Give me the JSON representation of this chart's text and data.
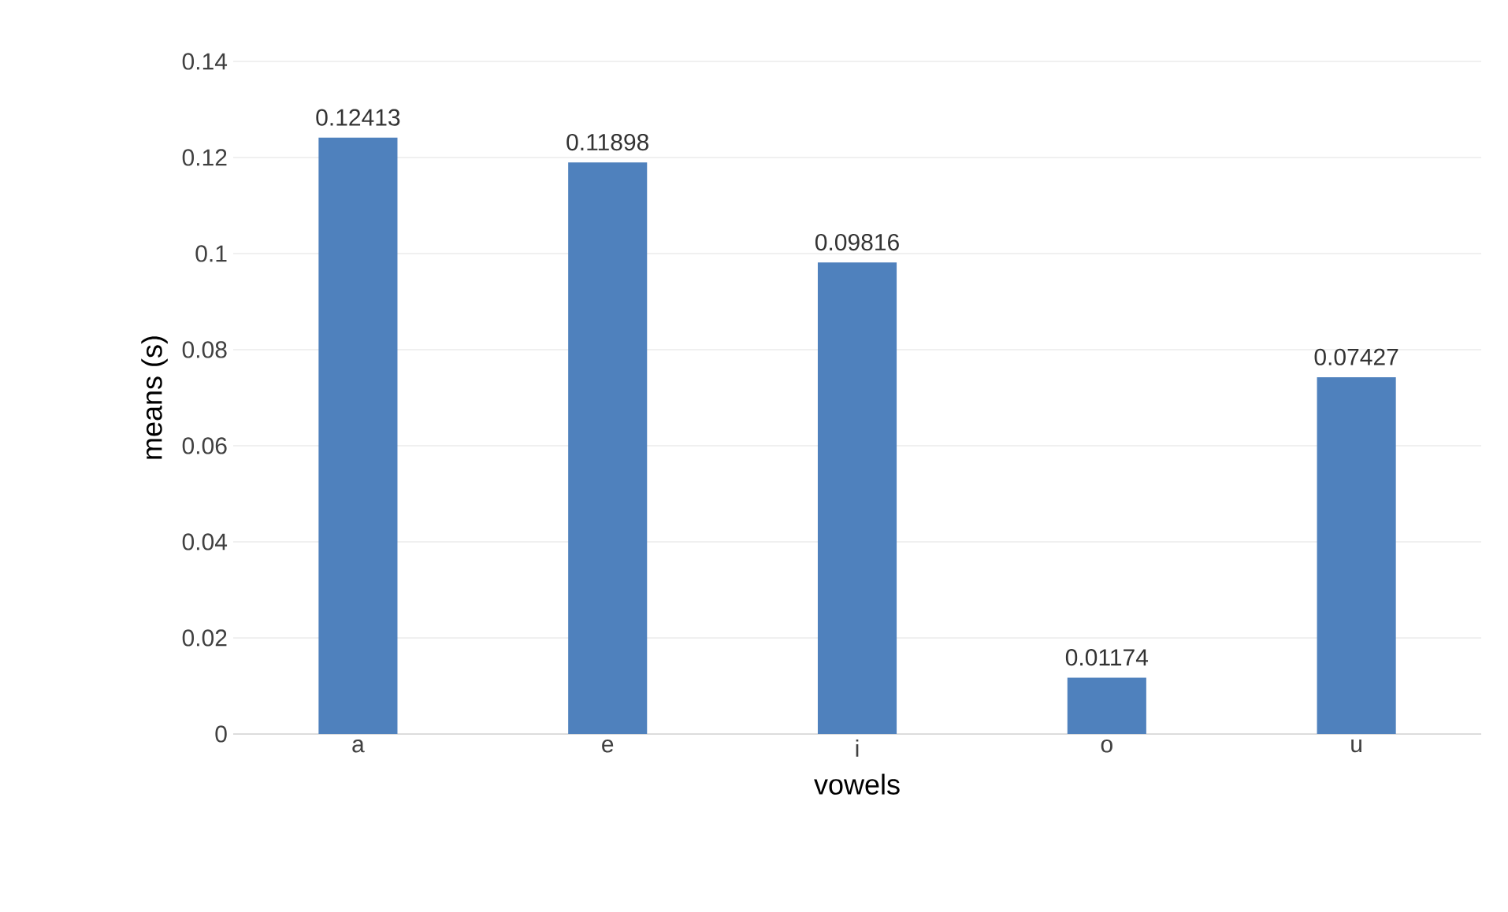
{
  "chart_data": {
    "type": "bar",
    "xlabel": "vowels",
    "ylabel": "means (s)",
    "categories": [
      "a",
      "e",
      "i",
      "o",
      "u"
    ],
    "values": [
      0.12413,
      0.11898,
      0.09816,
      0.01174,
      0.07427
    ],
    "color": "#4f81bd",
    "ylim": [
      0,
      0.14
    ],
    "yticks": [
      0,
      0.02,
      0.04,
      0.06,
      0.08,
      0.1,
      0.12,
      0.14
    ],
    "grid": "y",
    "data_labels": true
  }
}
